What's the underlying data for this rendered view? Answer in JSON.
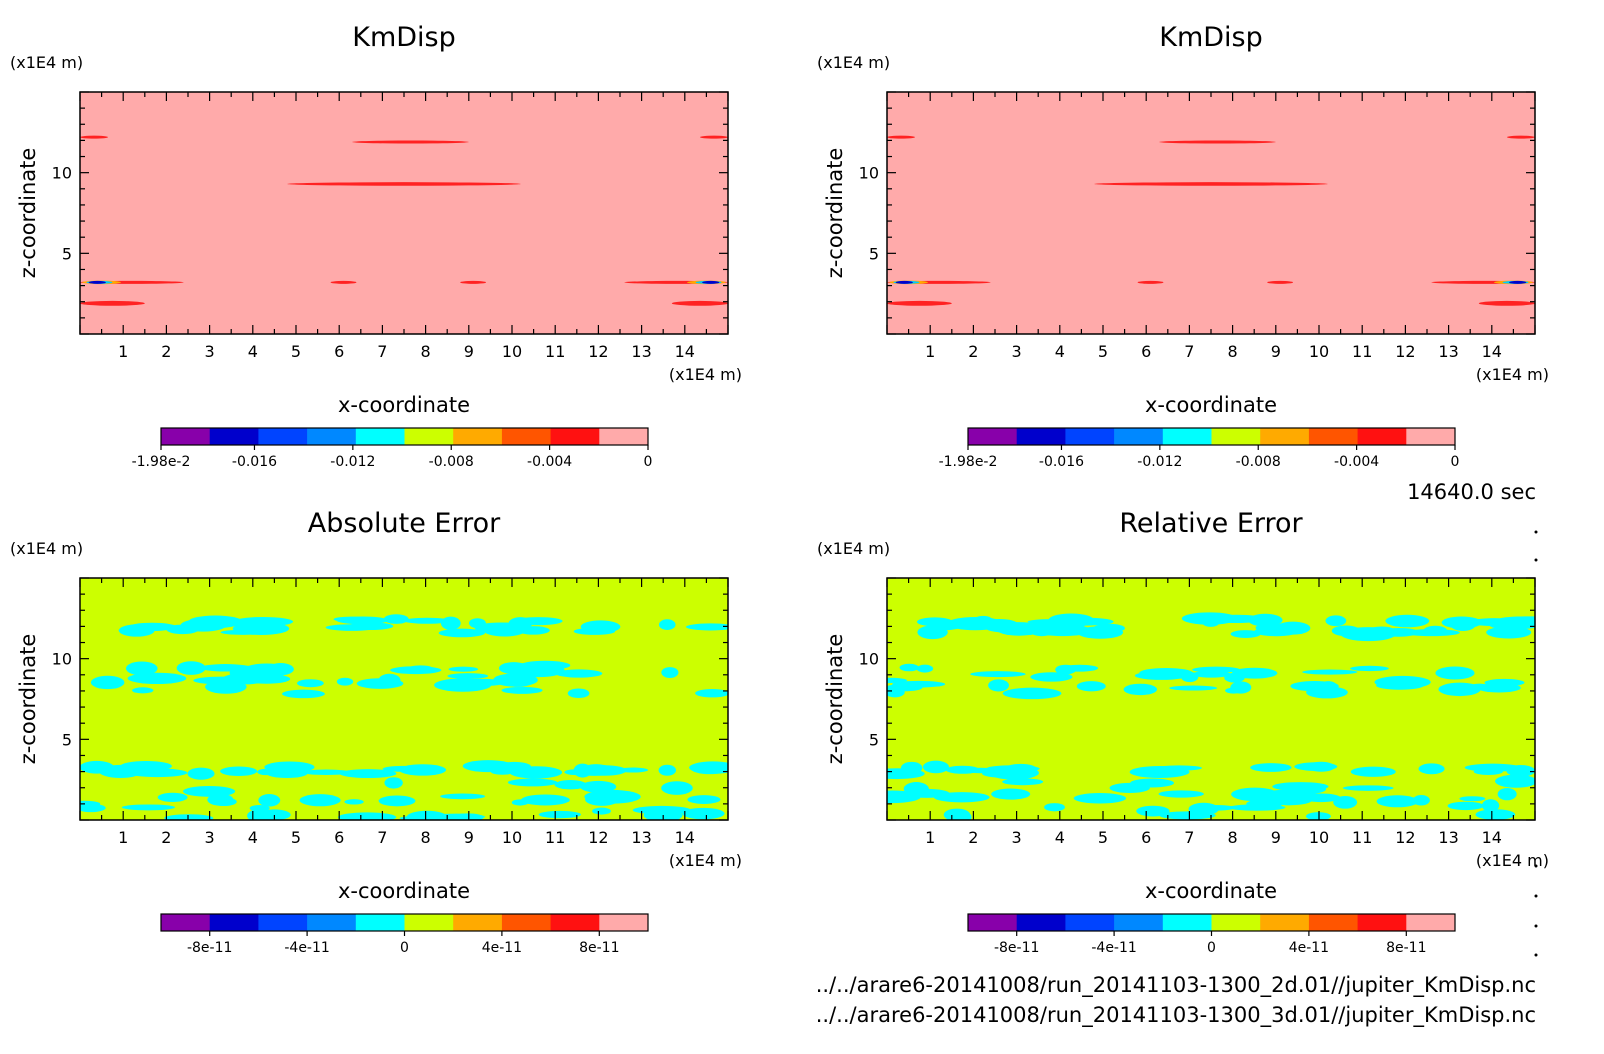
{
  "time_label": "14640.0 sec",
  "files": [
    "../../arare6-20141008/run_20141103-1300_2d.01//jupiter_KmDisp.nc",
    "../../arare6-20141008/run_20141103-1300_3d.01//jupiter_KmDisp.nc"
  ],
  "chart_data": [
    {
      "type": "heatmap",
      "title": "KmDisp",
      "xlabel": "x-coordinate",
      "ylabel": "z-coordinate",
      "x_unit": "(x1E4 m)",
      "y_unit": "(x1E4 m)",
      "xlim": [
        0,
        15
      ],
      "ylim": [
        0,
        15
      ],
      "xticks": [
        1,
        2,
        3,
        4,
        5,
        6,
        7,
        8,
        9,
        10,
        11,
        12,
        13,
        14
      ],
      "yticks": [
        5,
        10
      ],
      "background_color": "#ffaaaa",
      "colorbar": {
        "colors": [
          "#8800aa",
          "#0000cc",
          "#0044ff",
          "#0088ff",
          "#00ffff",
          "#ccff00",
          "#ffaa00",
          "#ff5500",
          "#ff1111",
          "#ffaaaa"
        ],
        "tick_labels": [
          "-1.98e-2",
          "-0.016",
          "-0.012",
          "-0.008",
          "-0.004",
          "0"
        ],
        "tick_values": [
          -0.0198,
          -0.016,
          -0.012,
          -0.008,
          -0.004,
          0
        ],
        "range": [
          -0.0198,
          0
        ]
      },
      "features": [
        {
          "x0": 0.0,
          "x1": 0.65,
          "z": 12.2,
          "w": 0.12,
          "color": "#ff2222"
        },
        {
          "x0": 14.35,
          "x1": 15.0,
          "z": 12.2,
          "w": 0.12,
          "color": "#ff2222"
        },
        {
          "x0": 6.3,
          "x1": 9.0,
          "z": 11.9,
          "w": 0.14,
          "color": "#ff2222"
        },
        {
          "x0": 4.8,
          "x1": 10.2,
          "z": 9.3,
          "w": 0.22,
          "color": "#ff2222"
        },
        {
          "x0": 0.0,
          "x1": 2.4,
          "z": 3.2,
          "w": 0.16,
          "color": "#ff2222"
        },
        {
          "x0": 12.6,
          "x1": 15.0,
          "z": 3.2,
          "w": 0.16,
          "color": "#ff2222"
        },
        {
          "x0": 5.8,
          "x1": 6.4,
          "z": 3.2,
          "w": 0.14,
          "color": "#ff2222"
        },
        {
          "x0": 8.8,
          "x1": 9.4,
          "z": 3.2,
          "w": 0.14,
          "color": "#ff2222"
        },
        {
          "x0": 0.0,
          "x1": 1.5,
          "z": 1.9,
          "w": 0.3,
          "color": "#ff2222"
        },
        {
          "x0": 13.7,
          "x1": 15.0,
          "z": 1.9,
          "w": 0.3,
          "color": "#ff2222"
        },
        {
          "x0": 0.05,
          "x1": 0.95,
          "z": 3.2,
          "w": 0.22,
          "color": "#ffaa00"
        },
        {
          "x0": 14.05,
          "x1": 14.95,
          "z": 3.2,
          "w": 0.22,
          "color": "#ffaa00"
        },
        {
          "x0": 0.15,
          "x1": 0.75,
          "z": 3.2,
          "w": 0.16,
          "color": "#00ccff"
        },
        {
          "x0": 14.25,
          "x1": 14.85,
          "z": 3.2,
          "w": 0.16,
          "color": "#00ccff"
        },
        {
          "x0": 0.2,
          "x1": 0.6,
          "z": 3.2,
          "w": 0.1,
          "color": "#0000cc"
        },
        {
          "x0": 14.4,
          "x1": 14.8,
          "z": 3.2,
          "w": 0.1,
          "color": "#0000cc"
        }
      ]
    },
    {
      "type": "heatmap",
      "title": "KmDisp",
      "xlabel": "x-coordinate",
      "ylabel": "z-coordinate",
      "x_unit": "(x1E4 m)",
      "y_unit": "(x1E4 m)",
      "xlim": [
        0,
        15
      ],
      "ylim": [
        0,
        15
      ],
      "xticks": [
        1,
        2,
        3,
        4,
        5,
        6,
        7,
        8,
        9,
        10,
        11,
        12,
        13,
        14
      ],
      "yticks": [
        5,
        10
      ],
      "background_color": "#ffaaaa",
      "colorbar": {
        "colors": [
          "#8800aa",
          "#0000cc",
          "#0044ff",
          "#0088ff",
          "#00ffff",
          "#ccff00",
          "#ffaa00",
          "#ff5500",
          "#ff1111",
          "#ffaaaa"
        ],
        "tick_labels": [
          "-1.98e-2",
          "-0.016",
          "-0.012",
          "-0.008",
          "-0.004",
          "0"
        ],
        "tick_values": [
          -0.0198,
          -0.016,
          -0.012,
          -0.008,
          -0.004,
          0
        ],
        "range": [
          -0.0198,
          0
        ]
      },
      "features": [
        {
          "x0": 0.0,
          "x1": 0.65,
          "z": 12.2,
          "w": 0.12,
          "color": "#ff2222"
        },
        {
          "x0": 14.35,
          "x1": 15.0,
          "z": 12.2,
          "w": 0.12,
          "color": "#ff2222"
        },
        {
          "x0": 6.3,
          "x1": 9.0,
          "z": 11.9,
          "w": 0.14,
          "color": "#ff2222"
        },
        {
          "x0": 4.8,
          "x1": 10.2,
          "z": 9.3,
          "w": 0.22,
          "color": "#ff2222"
        },
        {
          "x0": 0.0,
          "x1": 2.4,
          "z": 3.2,
          "w": 0.16,
          "color": "#ff2222"
        },
        {
          "x0": 12.6,
          "x1": 15.0,
          "z": 3.2,
          "w": 0.16,
          "color": "#ff2222"
        },
        {
          "x0": 5.8,
          "x1": 6.4,
          "z": 3.2,
          "w": 0.14,
          "color": "#ff2222"
        },
        {
          "x0": 8.8,
          "x1": 9.4,
          "z": 3.2,
          "w": 0.14,
          "color": "#ff2222"
        },
        {
          "x0": 0.0,
          "x1": 1.5,
          "z": 1.9,
          "w": 0.3,
          "color": "#ff2222"
        },
        {
          "x0": 13.7,
          "x1": 15.0,
          "z": 1.9,
          "w": 0.3,
          "color": "#ff2222"
        },
        {
          "x0": 0.05,
          "x1": 0.95,
          "z": 3.2,
          "w": 0.22,
          "color": "#ffaa00"
        },
        {
          "x0": 14.05,
          "x1": 14.95,
          "z": 3.2,
          "w": 0.22,
          "color": "#ffaa00"
        },
        {
          "x0": 0.15,
          "x1": 0.75,
          "z": 3.2,
          "w": 0.16,
          "color": "#00ccff"
        },
        {
          "x0": 14.25,
          "x1": 14.85,
          "z": 3.2,
          "w": 0.16,
          "color": "#00ccff"
        },
        {
          "x0": 0.2,
          "x1": 0.6,
          "z": 3.2,
          "w": 0.1,
          "color": "#0000cc"
        },
        {
          "x0": 14.4,
          "x1": 14.8,
          "z": 3.2,
          "w": 0.1,
          "color": "#0000cc"
        }
      ]
    },
    {
      "type": "heatmap",
      "title": "Absolute Error",
      "xlabel": "x-coordinate",
      "ylabel": "z-coordinate",
      "x_unit": "(x1E4 m)",
      "y_unit": "(x1E4 m)",
      "xlim": [
        0,
        15
      ],
      "ylim": [
        0,
        15
      ],
      "xticks": [
        1,
        2,
        3,
        4,
        5,
        6,
        7,
        8,
        9,
        10,
        11,
        12,
        13,
        14
      ],
      "yticks": [
        5,
        10
      ],
      "background_color": "#ccff00",
      "noise_color": "#00ffff",
      "noise_bands": [
        {
          "z": 12.0,
          "w": 0.5,
          "density": 0.45
        },
        {
          "z": 8.7,
          "w": 0.9,
          "density": 0.6
        },
        {
          "z": 3.1,
          "w": 0.25,
          "density": 0.45
        },
        {
          "z": 1.3,
          "w": 1.2,
          "density": 0.6
        }
      ],
      "colorbar": {
        "colors": [
          "#8800aa",
          "#0000cc",
          "#0044ff",
          "#0088ff",
          "#00ffff",
          "#ccff00",
          "#ffaa00",
          "#ff5500",
          "#ff1111",
          "#ffaaaa"
        ],
        "tick_labels": [
          "-8e-11",
          "-4e-11",
          "0",
          "4e-11",
          "8e-11"
        ],
        "tick_values": [
          -8e-11,
          -4e-11,
          0,
          4e-11,
          8e-11
        ],
        "range": [
          -1e-10,
          1e-10
        ]
      }
    },
    {
      "type": "heatmap",
      "title": "Relative Error",
      "xlabel": "x-coordinate",
      "ylabel": "z-coordinate",
      "x_unit": "(x1E4 m)",
      "y_unit": "(x1E4 m)",
      "xlim": [
        0,
        15
      ],
      "ylim": [
        0,
        15
      ],
      "xticks": [
        1,
        2,
        3,
        4,
        5,
        6,
        7,
        8,
        9,
        10,
        11,
        12,
        13,
        14
      ],
      "yticks": [
        5,
        10
      ],
      "background_color": "#ccff00",
      "noise_color": "#00ffff",
      "noise_bands": [
        {
          "z": 12.0,
          "w": 0.5,
          "density": 0.7
        },
        {
          "z": 8.7,
          "w": 0.9,
          "density": 0.6
        },
        {
          "z": 3.1,
          "w": 0.25,
          "density": 0.35
        },
        {
          "z": 1.3,
          "w": 1.2,
          "density": 0.6
        }
      ],
      "colorbar": {
        "colors": [
          "#8800aa",
          "#0000cc",
          "#0044ff",
          "#0088ff",
          "#00ffff",
          "#ccff00",
          "#ffaa00",
          "#ff5500",
          "#ff1111",
          "#ffaaaa"
        ],
        "tick_labels": [
          "-8e-11",
          "-4e-11",
          "0",
          "4e-11",
          "8e-11"
        ],
        "tick_values": [
          -8e-11,
          -4e-11,
          0,
          4e-11,
          8e-11
        ],
        "range": [
          -1e-10,
          1e-10
        ]
      }
    }
  ]
}
